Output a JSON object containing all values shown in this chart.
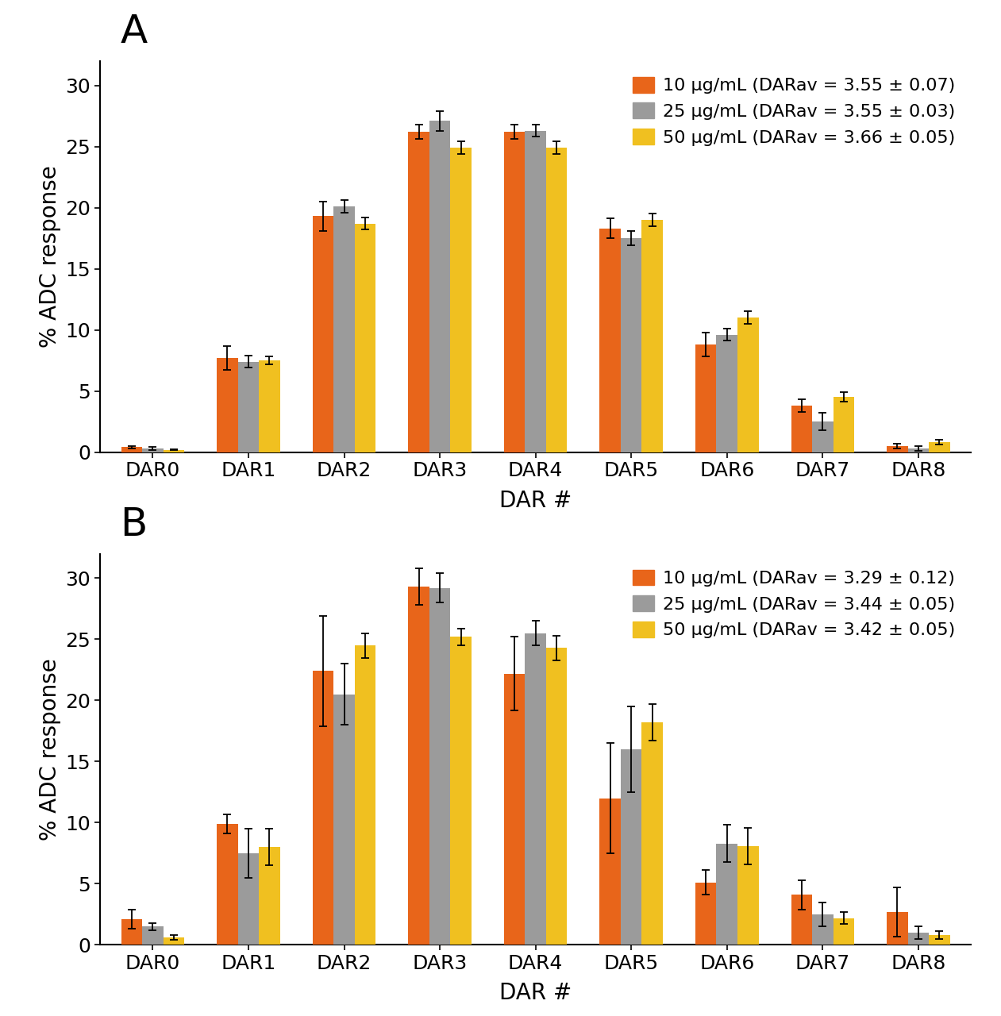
{
  "categories": [
    "DAR0",
    "DAR1",
    "DAR2",
    "DAR3",
    "DAR4",
    "DAR5",
    "DAR6",
    "DAR7",
    "DAR8"
  ],
  "panel_A": {
    "label": "A",
    "legend_labels": [
      "10 μg/mL (DARav = 3.55 ± 0.07)",
      "25 μg/mL (DARav = 3.55 ± 0.03)",
      "50 μg/mL (DARav = 3.66 ± 0.05)"
    ],
    "values": [
      [
        0.4,
        7.7,
        19.3,
        26.2,
        26.2,
        18.3,
        8.8,
        3.8,
        0.5
      ],
      [
        0.3,
        7.4,
        20.1,
        27.1,
        26.3,
        17.5,
        9.6,
        2.5,
        0.3
      ],
      [
        0.2,
        7.5,
        18.7,
        24.9,
        24.9,
        19.0,
        11.0,
        4.5,
        0.8
      ]
    ],
    "errors": [
      [
        0.1,
        1.0,
        1.2,
        0.6,
        0.6,
        0.8,
        1.0,
        0.5,
        0.2
      ],
      [
        0.1,
        0.5,
        0.5,
        0.8,
        0.5,
        0.6,
        0.5,
        0.7,
        0.2
      ],
      [
        0.05,
        0.3,
        0.5,
        0.5,
        0.5,
        0.5,
        0.5,
        0.4,
        0.2
      ]
    ]
  },
  "panel_B": {
    "label": "B",
    "legend_labels": [
      "10 μg/mL (DARav = 3.29 ± 0.12)",
      "25 μg/mL (DARav = 3.44 ± 0.05)",
      "50 μg/mL (DARav = 3.42 ± 0.05)"
    ],
    "values": [
      [
        2.1,
        9.9,
        22.4,
        29.3,
        22.2,
        12.0,
        5.1,
        4.1,
        2.7
      ],
      [
        1.5,
        7.5,
        20.5,
        29.2,
        25.5,
        16.0,
        8.3,
        2.5,
        1.0
      ],
      [
        0.6,
        8.0,
        24.5,
        25.2,
        24.3,
        18.2,
        8.1,
        2.2,
        0.8
      ]
    ],
    "errors": [
      [
        0.8,
        0.8,
        4.5,
        1.5,
        3.0,
        4.5,
        1.0,
        1.2,
        2.0
      ],
      [
        0.3,
        2.0,
        2.5,
        1.2,
        1.0,
        3.5,
        1.5,
        1.0,
        0.5
      ],
      [
        0.2,
        1.5,
        1.0,
        0.7,
        1.0,
        1.5,
        1.5,
        0.5,
        0.3
      ]
    ]
  },
  "colors": [
    "#E8651A",
    "#9B9B9B",
    "#F0C020"
  ],
  "bar_width": 0.22,
  "ylabel": "% ADC response",
  "xlabel": "DAR #",
  "ylim": [
    0,
    32
  ],
  "yticks": [
    0,
    5,
    10,
    15,
    20,
    25,
    30
  ],
  "panel_label_fontsize": 36,
  "axis_label_fontsize": 20,
  "tick_fontsize": 18,
  "legend_fontsize": 16,
  "background_color": "#ffffff"
}
